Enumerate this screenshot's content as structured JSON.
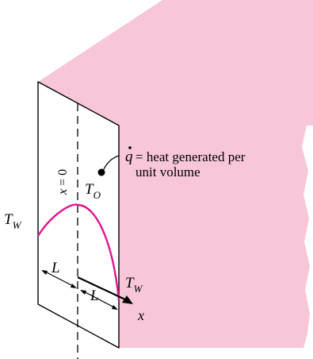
{
  "colors": {
    "face": "#f7c6d8",
    "curve": "#e0168c",
    "ink": "#000000",
    "background": "#ffffff"
  },
  "labels": {
    "q_symbol": "q",
    "q_text_1": "= heat generated per",
    "q_text_2": "unit volume",
    "x_zero_x": "x",
    "x_zero_rest": "= 0",
    "t_o_main": "T",
    "t_o_sub": "O",
    "t_w_left_main": "T",
    "t_w_left_sub": "W",
    "t_w_right_main": "T",
    "t_w_right_sub": "W",
    "l_left": "L",
    "l_right": "L",
    "axis_x": "x"
  }
}
